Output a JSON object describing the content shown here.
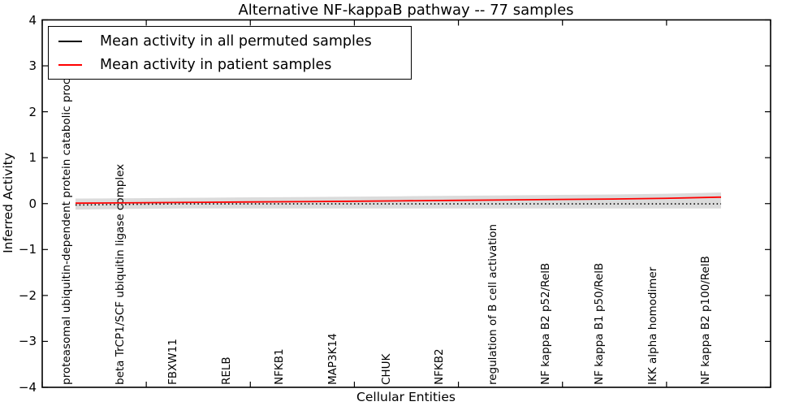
{
  "figure": {
    "title": "Alternative NF-kappaB pathway -- 77 samples",
    "xlabel": "Cellular Entities",
    "ylabel": "Inferred Activity"
  },
  "legend": {
    "position": "upper left",
    "items": [
      {
        "label": "Mean activity in all permuted samples",
        "color": "#000000"
      },
      {
        "label": "Mean activity in patient samples",
        "color": "#ff0000"
      }
    ]
  },
  "axes": {
    "y_tick_labels": [
      "4",
      "3",
      "2",
      "1",
      "0",
      "−1",
      "−2",
      "−3",
      "−4"
    ]
  },
  "chart_data": {
    "type": "line",
    "title": "Alternative NF-kappaB pathway -- 77 samples",
    "xlabel": "Cellular Entities",
    "ylabel": "Inferred Activity",
    "ylim": [
      -4,
      4
    ],
    "yticks": [
      -4,
      -3,
      -2,
      -1,
      0,
      1,
      2,
      3,
      4
    ],
    "grid": false,
    "legend_position": "upper left",
    "categories": [
      "proteasomal ubiquitin-dependent protein catabolic process",
      "beta TrCP1/SCF ubiquitin ligase complex",
      "FBXW11",
      "RELB",
      "NFKB1",
      "MAP3K14",
      "CHUK",
      "NFKB2",
      "regulation of B cell activation",
      "NF kappa B2 p52/RelB",
      "NF kappa B1 p50/RelB",
      "IKK alpha homodimer",
      "NF kappa B2 p100/RelB"
    ],
    "series": [
      {
        "name": "Mean activity in all permuted samples",
        "color": "#000000",
        "line_style": "dotted",
        "values": [
          -0.03,
          -0.015,
          -0.005,
          -0.005,
          -0.005,
          -0.005,
          -0.005,
          -0.005,
          -0.005,
          -0.005,
          -0.005,
          -0.005,
          -0.005
        ]
      },
      {
        "name": "Mean activity in patient samples",
        "color": "#ff0000",
        "line_style": "solid",
        "values": [
          0.01,
          0.018,
          0.026,
          0.034,
          0.042,
          0.05,
          0.06,
          0.07,
          0.08,
          0.09,
          0.1,
          0.115,
          0.14
        ]
      }
    ],
    "band": {
      "name": "permutation-spread-band",
      "color": "#000000",
      "opacity": 0.14,
      "half_width": 0.1
    }
  }
}
